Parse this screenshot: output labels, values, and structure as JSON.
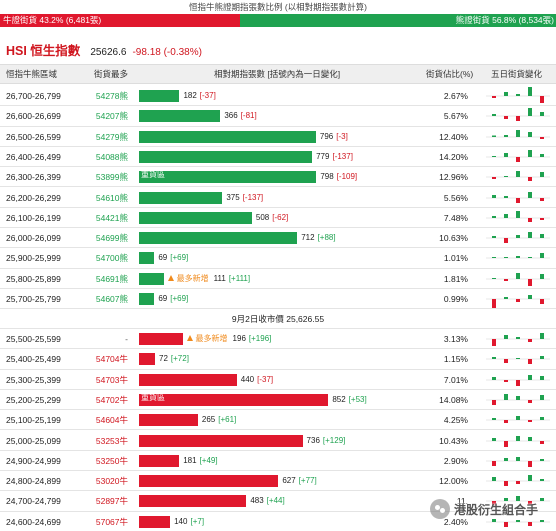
{
  "title": "恒指牛熊證期指張數比例 (以相對期指張數計算)",
  "ratio": {
    "bull_label": "牛證街貨 43.2% (6,481張)",
    "bear_label": "熊證街貨 56.8% (8,534張)",
    "bull_fraction": 0.432,
    "bull_color": "#e0182e",
    "bear_color": "#1fa250"
  },
  "hsi": {
    "name": "HSI 恒生指數",
    "value": "25626.6",
    "change": "-98.18 (-0.38%)"
  },
  "headers": {
    "range": "恒指牛熊區域",
    "code": "街貨最多",
    "volume": "相對期指張數 [括號內為一日變化]",
    "ratio": "街貨佔比(%)",
    "history": "五日街貨變化"
  },
  "divider": "9月2日收市價 25,626.55",
  "bear_rows": [
    {
      "range": "26,700-26,799",
      "code": "54278熊",
      "count": "182",
      "change": "[-37]",
      "ratio": "2.67%",
      "label": "",
      "warning": "",
      "hist": [
        -0.2,
        0.4,
        0.2,
        0.9,
        -0.7
      ],
      "bar": 182
    },
    {
      "range": "26,600-26,699",
      "code": "54207熊",
      "count": "366",
      "change": "[-81]",
      "ratio": "5.67%",
      "label": "",
      "warning": "",
      "hist": [
        0.2,
        -0.3,
        -0.5,
        0.8,
        0.4
      ],
      "bar": 366
    },
    {
      "range": "26,500-26,599",
      "code": "54279熊",
      "count": "796",
      "change": "[-3]",
      "ratio": "12.40%",
      "label": "",
      "warning": "",
      "hist": [
        0.15,
        0.2,
        0.7,
        0.5,
        -0.2
      ],
      "bar": 796
    },
    {
      "range": "26,400-26,499",
      "code": "54088熊",
      "count": "779",
      "change": "[-137]",
      "ratio": "14.20%",
      "label": "",
      "warning": "",
      "hist": [
        0.1,
        0.4,
        -0.5,
        0.7,
        0.3
      ],
      "bar": 779
    },
    {
      "range": "26,300-26,399",
      "code": "53899熊",
      "count": "798",
      "change": "[-109]",
      "ratio": "12.96%",
      "label": "重貨區",
      "warning": "",
      "hist": [
        -0.2,
        0.1,
        0.6,
        -0.4,
        0.5
      ],
      "bar": 798
    },
    {
      "range": "26,200-26,299",
      "code": "54610熊",
      "count": "375",
      "change": "[-137]",
      "ratio": "5.56%",
      "label": "",
      "warning": "",
      "hist": [
        0.3,
        0.2,
        -0.5,
        0.6,
        -0.3
      ],
      "bar": 375
    },
    {
      "range": "26,100-26,199",
      "code": "54421熊",
      "count": "508",
      "change": "[-62]",
      "ratio": "7.48%",
      "label": "",
      "warning": "",
      "hist": [
        0.2,
        0.4,
        0.7,
        -0.4,
        -0.2
      ],
      "bar": 508
    },
    {
      "range": "26,000-26,099",
      "code": "54699熊",
      "count": "712",
      "change": "[+88]",
      "ratio": "10.63%",
      "label": "",
      "warning": "",
      "hist": [
        0.2,
        -0.5,
        0.3,
        0.6,
        0.4
      ],
      "bar": 712
    },
    {
      "range": "25,900-25,999",
      "code": "54700熊",
      "count": "69",
      "change": "[+69]",
      "ratio": "1.01%",
      "label": "",
      "warning": "",
      "hist": [
        0,
        0,
        0.2,
        0,
        0.5
      ],
      "bar": 69
    },
    {
      "range": "25,800-25,899",
      "code": "54691熊",
      "count": "111",
      "change": "[+111]",
      "ratio": "1.81%",
      "label": "",
      "warning": "最多新增",
      "hist": [
        0.1,
        -0.2,
        0.6,
        -0.7,
        0.5
      ],
      "bar": 111
    },
    {
      "range": "25,700-25,799",
      "code": "54607熊",
      "count": "69",
      "change": "[+69]",
      "ratio": "0.99%",
      "label": "",
      "warning": "",
      "hist": [
        -0.9,
        0.2,
        -0.3,
        0.4,
        -0.5
      ],
      "bar": 69
    }
  ],
  "bull_rows": [
    {
      "range": "25,500-25,599",
      "code": "-",
      "count": "196",
      "change": "[+196]",
      "ratio": "3.13%",
      "label": "",
      "warning": "最多新增",
      "hist": [
        -0.7,
        0.4,
        0.2,
        -0.3,
        0.6
      ],
      "bar": 196
    },
    {
      "range": "25,400-25,499",
      "code": "54704牛",
      "count": "72",
      "change": "[+72]",
      "ratio": "1.15%",
      "label": "",
      "warning": "",
      "hist": [
        0.2,
        -0.4,
        0.1,
        -0.5,
        0.3
      ],
      "bar": 72
    },
    {
      "range": "25,300-25,399",
      "code": "54703牛",
      "count": "440",
      "change": "[-37]",
      "ratio": "7.01%",
      "label": "",
      "warning": "",
      "hist": [
        0.3,
        -0.2,
        -0.6,
        0.5,
        0.4
      ],
      "bar": 440
    },
    {
      "range": "25,200-25,299",
      "code": "54702牛",
      "count": "852",
      "change": "[+53]",
      "ratio": "14.08%",
      "label": "重貨區",
      "warning": "",
      "hist": [
        -0.5,
        0.6,
        0.4,
        -0.3,
        0.5
      ],
      "bar": 852
    },
    {
      "range": "25,100-25,199",
      "code": "54604牛",
      "count": "265",
      "change": "[+61]",
      "ratio": "4.25%",
      "label": "",
      "warning": "",
      "hist": [
        0.2,
        -0.3,
        0.4,
        -0.2,
        0.3
      ],
      "bar": 265
    },
    {
      "range": "25,000-25,099",
      "code": "53253牛",
      "count": "736",
      "change": "[+129]",
      "ratio": "10.43%",
      "label": "",
      "warning": "",
      "hist": [
        0.3,
        -0.6,
        0.5,
        0.4,
        -0.3
      ],
      "bar": 736
    },
    {
      "range": "24,900-24,999",
      "code": "53250牛",
      "count": "181",
      "change": "[+49]",
      "ratio": "2.90%",
      "label": "",
      "warning": "",
      "hist": [
        -0.5,
        0.3,
        0.4,
        -0.6,
        0.2
      ],
      "bar": 181
    },
    {
      "range": "24,800-24,899",
      "code": "53020牛",
      "count": "627",
      "change": "[+77]",
      "ratio": "12.00%",
      "label": "",
      "warning": "",
      "hist": [
        0.4,
        -0.5,
        -0.3,
        0.6,
        0.2
      ],
      "bar": 627
    },
    {
      "range": "24,700-24,799",
      "code": "52897牛",
      "count": "483",
      "change": "[+44]",
      "ratio": "11.",
      "label": "",
      "warning": "",
      "hist": [
        -0.6,
        0.3,
        0.5,
        -0.4,
        0.3
      ],
      "bar": 483
    },
    {
      "range": "24,600-24,699",
      "code": "57067牛",
      "count": "140",
      "change": "[+7]",
      "ratio": "2.40%",
      "label": "",
      "warning": "",
      "hist": [
        0.3,
        -0.5,
        0.2,
        -0.4,
        0.2
      ],
      "bar": 140
    }
  ],
  "watermark": "港股衍生組合手"
}
